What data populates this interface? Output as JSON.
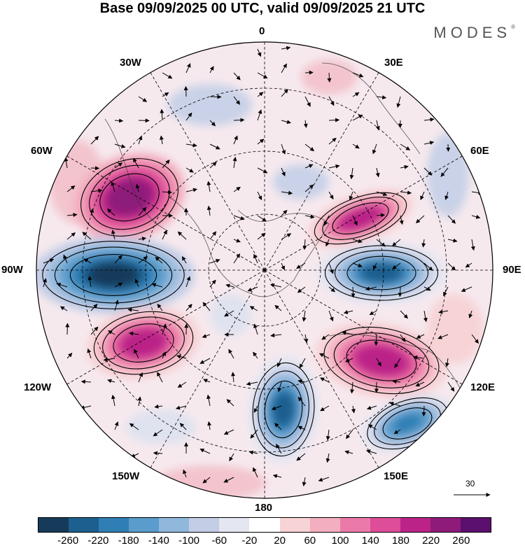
{
  "header": {
    "title": "Base 09/09/2025 00 UTC, valid 09/09/2025 21 UTC",
    "brand": "MODES",
    "brand_mark": "®"
  },
  "map": {
    "projection": "polar stereographic, south pole",
    "labels": {
      "lon_0": "0",
      "lon_30e": "30E",
      "lon_60e": "60E",
      "lon_90e": "90E",
      "lon_120e": "120E",
      "lon_150e": "150E",
      "lon_180": "180",
      "lon_150w": "150W",
      "lon_120w": "120W",
      "lon_90w": "90W",
      "lon_60w": "60W",
      "lon_30w": "30W"
    },
    "vector_reference": "30",
    "anomalies": [
      {
        "sign": "positive",
        "peak": 260,
        "sector": "60W-75W"
      },
      {
        "sign": "negative",
        "peak": -260,
        "sector": "90W"
      },
      {
        "sign": "positive",
        "peak": 220,
        "sector": "110W"
      },
      {
        "sign": "negative",
        "peak": -220,
        "sector": "180"
      },
      {
        "sign": "positive",
        "peak": 220,
        "sector": "115E"
      },
      {
        "sign": "negative",
        "peak": -220,
        "sector": "90E"
      },
      {
        "sign": "positive",
        "peak": 220,
        "sector": "70E"
      },
      {
        "sign": "negative",
        "peak": -180,
        "sector": "140E"
      }
    ]
  },
  "colorbar": {
    "ticks": [
      "-260",
      "-220",
      "-180",
      "-140",
      "-100",
      "-60",
      "-20",
      "20",
      "60",
      "100",
      "140",
      "180",
      "220",
      "260"
    ],
    "colors": [
      "#163a5a",
      "#1d5f8f",
      "#2f7fb5",
      "#5a9ccb",
      "#90b8dc",
      "#c3cde6",
      "#e4e6f1",
      "#ffffff",
      "#f7d3d6",
      "#f3aebf",
      "#eb7aa8",
      "#dd4d98",
      "#bb2388",
      "#8e1a7a",
      "#5b0f6e"
    ]
  }
}
